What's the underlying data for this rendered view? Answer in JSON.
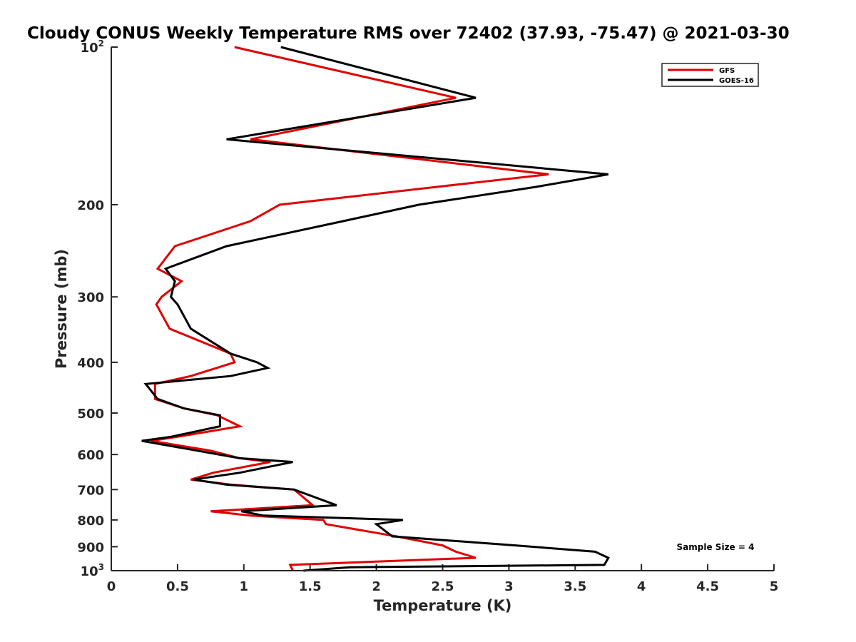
{
  "chart_data": {
    "type": "line",
    "title": "Cloudy CONUS Weekly Temperature RMS over 72402 (37.93, -75.47) @ 2021-03-30",
    "xlabel": "Temperature (K)",
    "ylabel": "Pressure (mb)",
    "xlim": [
      0,
      5
    ],
    "ylim": [
      100,
      1000
    ],
    "y_scale": "log",
    "y_reversed": true,
    "xticks": [
      0,
      0.5,
      1,
      1.5,
      2,
      2.5,
      3,
      3.5,
      4,
      4.5,
      5
    ],
    "xtick_labels": [
      "0",
      "0.5",
      "1",
      "1.5",
      "2",
      "2.5",
      "3",
      "3.5",
      "4",
      "4.5",
      "5"
    ],
    "yticks": [
      100,
      200,
      300,
      400,
      500,
      600,
      700,
      800,
      900,
      1000
    ],
    "ytick_labels": [
      {
        "base": "10",
        "sup": "2"
      },
      {
        "base": "200",
        "sup": ""
      },
      {
        "base": "300",
        "sup": ""
      },
      {
        "base": "400",
        "sup": ""
      },
      {
        "base": "500",
        "sup": ""
      },
      {
        "base": "600",
        "sup": ""
      },
      {
        "base": "700",
        "sup": ""
      },
      {
        "base": "800",
        "sup": ""
      },
      {
        "base": "900",
        "sup": ""
      },
      {
        "base": "10",
        "sup": "3"
      }
    ],
    "legend_position": "top-right",
    "annotation": "Sample Size = 4",
    "series": [
      {
        "name": "GFS",
        "color": "#e00000",
        "points": [
          [
            0.93,
            100
          ],
          [
            2.6,
            125
          ],
          [
            1.05,
            150
          ],
          [
            3.3,
            175
          ],
          [
            2.45,
            185
          ],
          [
            1.27,
            200
          ],
          [
            1.05,
            215
          ],
          [
            0.48,
            240
          ],
          [
            0.35,
            265
          ],
          [
            0.53,
            280
          ],
          [
            0.38,
            300
          ],
          [
            0.34,
            310
          ],
          [
            0.44,
            345
          ],
          [
            0.9,
            385
          ],
          [
            0.93,
            400
          ],
          [
            0.6,
            425
          ],
          [
            0.33,
            440
          ],
          [
            0.33,
            470
          ],
          [
            0.55,
            490
          ],
          [
            0.8,
            505
          ],
          [
            0.97,
            530
          ],
          [
            0.5,
            555
          ],
          [
            0.3,
            565
          ],
          [
            0.75,
            590
          ],
          [
            0.97,
            610
          ],
          [
            1.2,
            620
          ],
          [
            0.77,
            650
          ],
          [
            0.6,
            670
          ],
          [
            0.9,
            685
          ],
          [
            1.38,
            700
          ],
          [
            1.52,
            750
          ],
          [
            0.75,
            770
          ],
          [
            1.05,
            785
          ],
          [
            1.6,
            800
          ],
          [
            1.62,
            815
          ],
          [
            2.15,
            860
          ],
          [
            2.5,
            895
          ],
          [
            2.6,
            920
          ],
          [
            2.75,
            945
          ],
          [
            1.35,
            975
          ],
          [
            1.37,
            1000
          ]
        ]
      },
      {
        "name": "GOES-16",
        "color": "#000000",
        "points": [
          [
            1.28,
            100
          ],
          [
            2.75,
            125
          ],
          [
            0.87,
            150
          ],
          [
            3.75,
            175
          ],
          [
            3.2,
            185
          ],
          [
            2.32,
            200
          ],
          [
            1.75,
            215
          ],
          [
            0.87,
            240
          ],
          [
            0.41,
            265
          ],
          [
            0.48,
            280
          ],
          [
            0.45,
            300
          ],
          [
            0.5,
            310
          ],
          [
            0.6,
            345
          ],
          [
            0.9,
            385
          ],
          [
            1.1,
            400
          ],
          [
            1.18,
            410
          ],
          [
            0.9,
            425
          ],
          [
            0.26,
            440
          ],
          [
            0.35,
            470
          ],
          [
            0.55,
            490
          ],
          [
            0.82,
            505
          ],
          [
            0.82,
            530
          ],
          [
            0.45,
            555
          ],
          [
            0.23,
            565
          ],
          [
            0.65,
            590
          ],
          [
            0.97,
            610
          ],
          [
            1.37,
            620
          ],
          [
            0.97,
            650
          ],
          [
            0.62,
            670
          ],
          [
            0.87,
            685
          ],
          [
            1.38,
            700
          ],
          [
            1.7,
            750
          ],
          [
            0.98,
            770
          ],
          [
            1.15,
            785
          ],
          [
            2.2,
            800
          ],
          [
            2.0,
            815
          ],
          [
            2.12,
            860
          ],
          [
            3.05,
            895
          ],
          [
            3.65,
            920
          ],
          [
            3.75,
            945
          ],
          [
            3.72,
            975
          ],
          [
            1.8,
            985
          ],
          [
            1.45,
            1000
          ]
        ]
      }
    ]
  }
}
